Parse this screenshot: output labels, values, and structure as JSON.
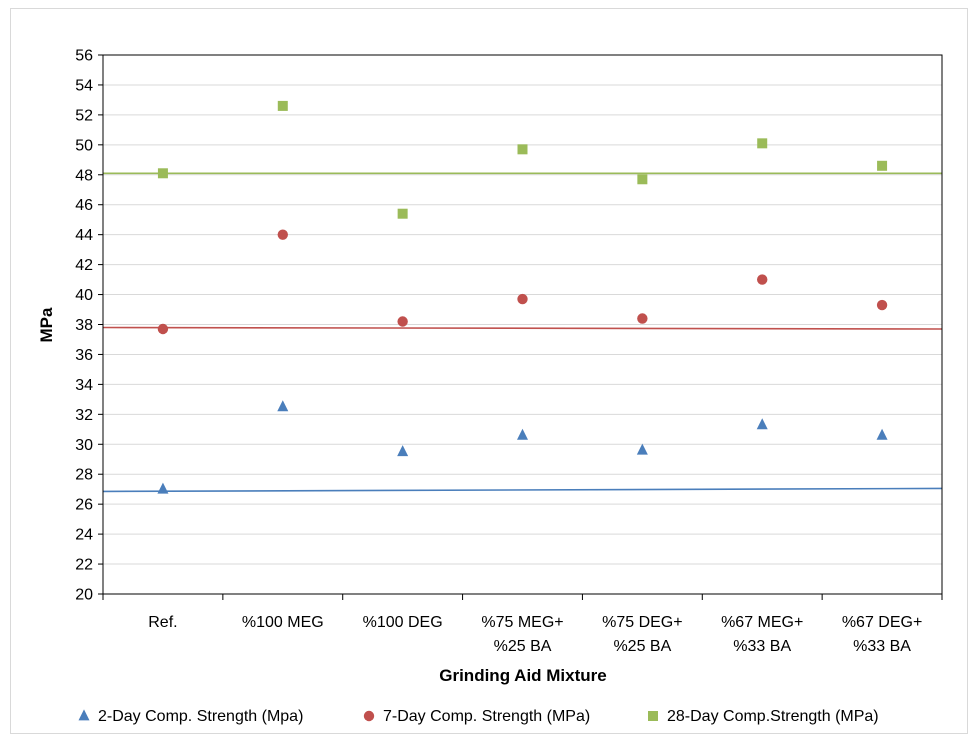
{
  "chart_data": {
    "type": "scatter",
    "title": "",
    "xlabel": "Grinding Aid Mixture",
    "ylabel": "MPa",
    "ylim": [
      20,
      56
    ],
    "ytick_step": 2,
    "grid": "horizontal",
    "legend_position": "bottom",
    "categories": [
      [
        "Ref."
      ],
      [
        "%100 MEG"
      ],
      [
        "%100 DEG"
      ],
      [
        "%75 MEG+",
        "%25 BA"
      ],
      [
        "%75 DEG+",
        "%25 BA"
      ],
      [
        "%67 MEG+",
        "%33 BA"
      ],
      [
        "%67 DEG+",
        "%33 BA"
      ]
    ],
    "series": [
      {
        "name": "2-Day Comp. Strength (Mpa)",
        "marker": "triangle",
        "color": "#4a7ebb",
        "values": [
          27.0,
          32.5,
          29.5,
          30.6,
          29.6,
          31.3,
          30.6
        ],
        "trendline": [
          26.85,
          27.05
        ]
      },
      {
        "name": "7-Day Comp. Strength (MPa)",
        "marker": "circle",
        "color": "#c0504d",
        "values": [
          37.7,
          44.0,
          38.2,
          39.7,
          38.4,
          41.0,
          39.3
        ],
        "trendline": [
          37.8,
          37.7
        ]
      },
      {
        "name": "28-Day Comp.Strength (MPa)",
        "marker": "square",
        "color": "#9bbb59",
        "values": [
          48.1,
          52.6,
          45.4,
          49.7,
          47.7,
          50.1,
          48.6
        ],
        "trendline": [
          48.1,
          48.1
        ]
      }
    ]
  }
}
